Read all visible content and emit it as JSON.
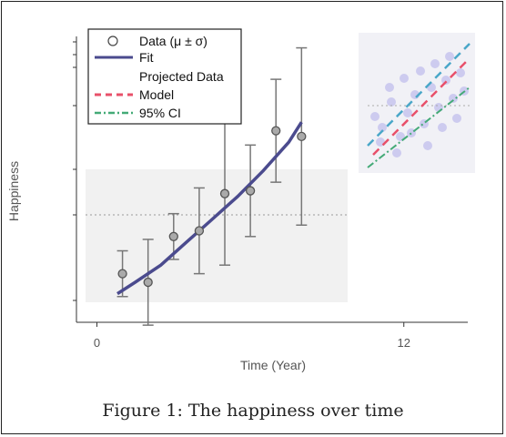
{
  "caption": "Figure 1: The happiness over time",
  "legend": {
    "items": [
      {
        "label": "Data (μ ± σ)",
        "kind": "marker",
        "color": "#888888"
      },
      {
        "label": "Fit",
        "kind": "line",
        "color": "#4b4b8e"
      },
      {
        "label": "Projected Data",
        "kind": "none",
        "color": ""
      },
      {
        "label": "Model",
        "kind": "dashed",
        "color": "#e8506a"
      },
      {
        "label": "95% CI",
        "kind": "dashdot",
        "color": "#44aa77"
      }
    ]
  },
  "chart_data": {
    "type": "scatter",
    "title": "",
    "xlabel": "Time (Year)",
    "ylabel": "Happiness",
    "xlim": [
      -0.8,
      14.5
    ],
    "ylim": [
      0,
      1
    ],
    "x_ticks": [
      {
        "value": 0,
        "label": "0"
      },
      {
        "value": 12,
        "label": "12"
      }
    ],
    "reference_line": {
      "y": 0.5,
      "style": "dotted",
      "color": "#999999"
    },
    "series": [
      {
        "name": "Data (μ ± σ)",
        "x": [
          1,
          2,
          3,
          4,
          5,
          6,
          7,
          8
        ],
        "y": [
          0.17,
          0.14,
          0.3,
          0.32,
          0.45,
          0.46,
          0.67,
          0.65
        ],
        "err": [
          0.08,
          0.15,
          0.08,
          0.15,
          0.25,
          0.16,
          0.18,
          0.31
        ],
        "color": "#888888"
      },
      {
        "name": "Fit",
        "x": [
          0.8,
          1.5,
          2.5,
          3.5,
          4.5,
          5.5,
          6.5,
          7.5,
          8.0
        ],
        "y": [
          0.1,
          0.14,
          0.2,
          0.28,
          0.36,
          0.44,
          0.53,
          0.63,
          0.7
        ],
        "color": "#4b4b8e"
      }
    ],
    "grid": false,
    "legend_position": "top-left"
  }
}
